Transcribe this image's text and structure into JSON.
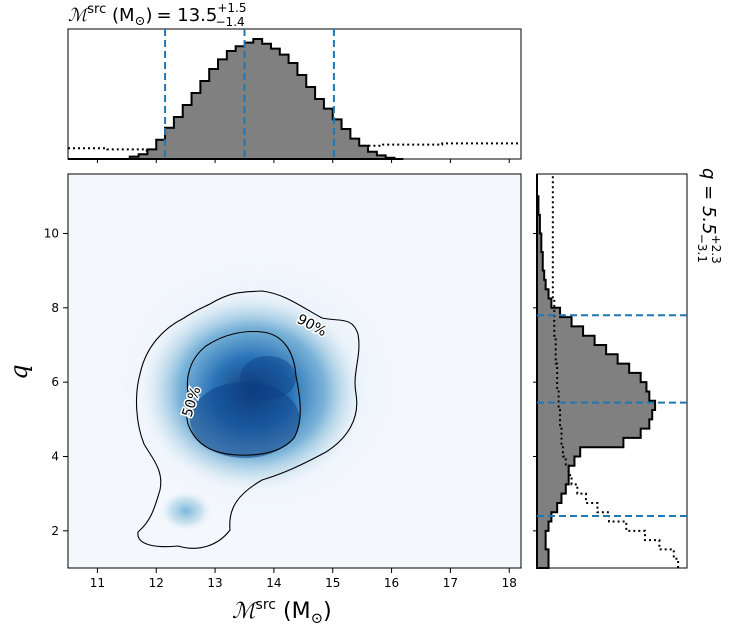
{
  "chart_data": {
    "type": "heatmap",
    "top_marginal": {
      "title_param": "ℳ",
      "title_sup": "src",
      "title_unit": "(M",
      "title_unit_sub": "⊙",
      "title_unit_close": ")",
      "title_eq": "= 13.5",
      "title_plus": "+1.5",
      "title_minus": "−1.4",
      "quantiles": [
        12.15,
        13.5,
        15.02
      ],
      "hist_x": [
        10.5,
        10.65,
        10.8,
        10.95,
        11.1,
        11.25,
        11.4,
        11.55,
        11.7,
        11.85,
        12.0,
        12.15,
        12.3,
        12.45,
        12.6,
        12.75,
        12.9,
        13.05,
        13.2,
        13.35,
        13.5,
        13.65,
        13.8,
        13.95,
        14.1,
        14.25,
        14.4,
        14.55,
        14.7,
        14.85,
        15.0,
        15.15,
        15.3,
        15.45,
        15.6,
        15.75,
        15.9,
        16.05,
        16.2
      ],
      "hist_y": [
        0,
        0,
        0,
        0,
        0,
        0,
        0,
        0.02,
        0.04,
        0.08,
        0.16,
        0.26,
        0.35,
        0.45,
        0.55,
        0.65,
        0.75,
        0.83,
        0.9,
        0.94,
        0.97,
        1.0,
        0.96,
        0.92,
        0.87,
        0.8,
        0.7,
        0.6,
        0.5,
        0.42,
        0.33,
        0.25,
        0.17,
        0.11,
        0.06,
        0.03,
        0.01,
        0,
        0
      ],
      "prior_level": 0.1
    },
    "right_marginal": {
      "title": "q = 5.5",
      "title_plus": "+2.3",
      "title_minus": "−3.1",
      "quantiles": [
        2.4,
        5.45,
        7.8
      ]
    },
    "main": {
      "xlabel_main": "ℳ",
      "xlabel_sup": "src",
      "xlabel_unit": "(M",
      "xlabel_unit_sub": "⊙",
      "xlabel_close": ")",
      "ylabel": "q",
      "xlim": [
        10.5,
        18.2
      ],
      "ylim": [
        1.0,
        11.6
      ],
      "xticks": [
        11,
        12,
        13,
        14,
        15,
        16,
        17,
        18
      ],
      "yticks": [
        2,
        4,
        6,
        8,
        10
      ],
      "contour_labels": [
        "90%",
        "50%"
      ],
      "colormap": "Blues",
      "contour_color": "#000000",
      "quantile_color": "#1f77b4",
      "hist_fill": "#808080"
    }
  }
}
